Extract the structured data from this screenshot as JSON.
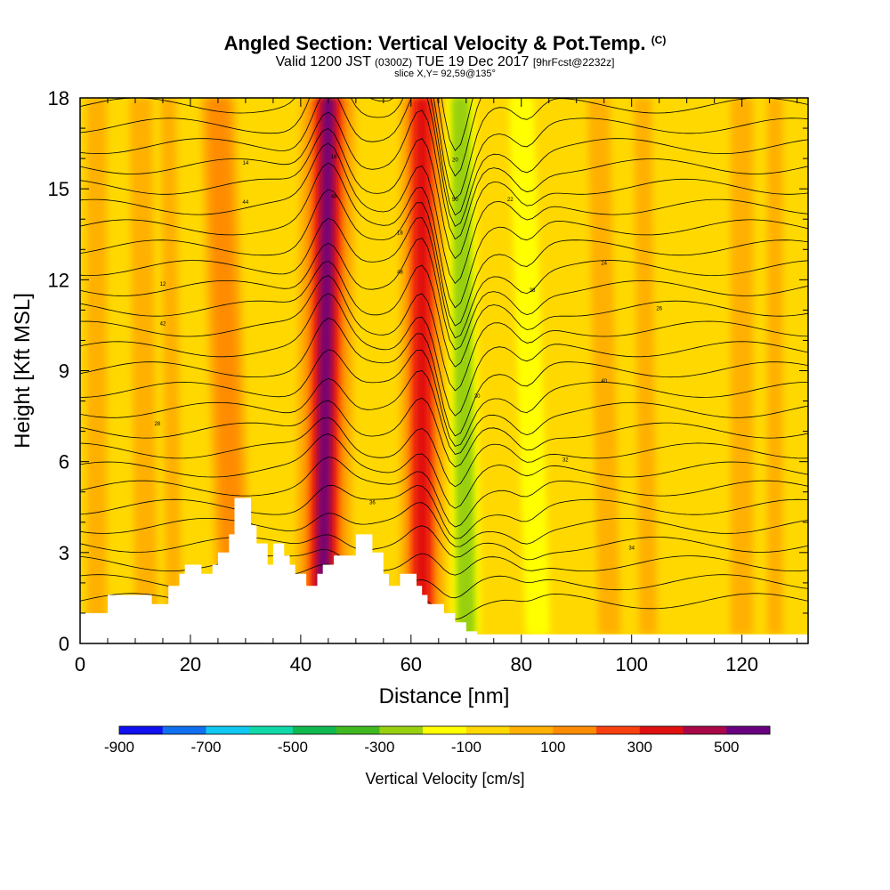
{
  "header": {
    "title_main": "Angled Section: Vertical Velocity & Pot.Temp.",
    "title_suffix": "(C)",
    "subtitle_a": "Valid 1200 JST",
    "subtitle_b": "(0300Z)",
    "subtitle_c": "TUE 19 Dec 2017",
    "subtitle_d": "[9hrFcst@2232z]",
    "slice": "slice X,Y= 92,59@135°"
  },
  "chart_data": {
    "type": "heatmap",
    "xlabel": "Distance [nm]",
    "ylabel": "Height [Kft MSL]",
    "xlim": [
      0,
      132
    ],
    "ylim": [
      0,
      18
    ],
    "x_ticks": [
      "0",
      "20",
      "40",
      "60",
      "80",
      "100",
      "120"
    ],
    "y_ticks": [
      "0",
      "3",
      "6",
      "9",
      "12",
      "15",
      "18"
    ],
    "grid": false,
    "colorbar": {
      "title": "Vertical Velocity [cm/s]",
      "bounds": [
        -900,
        -800,
        -700,
        -600,
        -500,
        -400,
        -300,
        -200,
        -100,
        0,
        100,
        200,
        300,
        400,
        500,
        600
      ],
      "tick_labels": [
        "-900",
        "-700",
        "-500",
        "-300",
        "-100",
        "100",
        "300",
        "500"
      ],
      "colors": [
        "#1010f0",
        "#1070f0",
        "#10c8f0",
        "#10d8a8",
        "#10b850",
        "#40b820",
        "#98d010",
        "#ffff00",
        "#ffd800",
        "#ffb000",
        "#ff8c00",
        "#f84010",
        "#e01010",
        "#a80848",
        "#680080"
      ]
    },
    "updraft_bands": [
      {
        "x_bottom": 44,
        "x_top": 45,
        "max_cm_s": 600
      },
      {
        "x_bottom": 62,
        "x_top": 62,
        "max_cm_s": 400
      },
      {
        "x_bottom": 28,
        "x_top": 25,
        "max_cm_s": 200
      }
    ],
    "downdraft_bands": [
      {
        "x_bottom": 70,
        "x_top": 69,
        "min_cm_s": -300
      },
      {
        "x_bottom": 83,
        "x_top": 80,
        "min_cm_s": -200
      }
    ],
    "terrain_kft": [
      [
        0,
        1.0
      ],
      [
        5,
        1.0
      ],
      [
        5,
        1.6
      ],
      [
        13,
        1.6
      ],
      [
        13,
        1.3
      ],
      [
        16,
        1.3
      ],
      [
        16,
        1.9
      ],
      [
        18,
        1.9
      ],
      [
        18,
        2.3
      ],
      [
        19,
        2.3
      ],
      [
        19,
        2.6
      ],
      [
        22,
        2.6
      ],
      [
        22,
        2.3
      ],
      [
        24,
        2.3
      ],
      [
        24,
        2.6
      ],
      [
        25,
        2.6
      ],
      [
        25,
        3.0
      ],
      [
        27,
        3.0
      ],
      [
        27,
        3.6
      ],
      [
        28,
        3.6
      ],
      [
        28,
        4.8
      ],
      [
        31,
        4.8
      ],
      [
        31,
        3.9
      ],
      [
        32,
        3.9
      ],
      [
        32,
        3.3
      ],
      [
        34,
        3.3
      ],
      [
        34,
        2.6
      ],
      [
        35,
        2.6
      ],
      [
        35,
        3.3
      ],
      [
        37,
        3.3
      ],
      [
        37,
        2.9
      ],
      [
        38,
        2.9
      ],
      [
        38,
        2.6
      ],
      [
        39,
        2.6
      ],
      [
        39,
        2.3
      ],
      [
        41,
        2.3
      ],
      [
        41,
        1.9
      ],
      [
        43,
        1.9
      ],
      [
        43,
        2.3
      ],
      [
        44,
        2.3
      ],
      [
        44,
        2.6
      ],
      [
        46,
        2.6
      ],
      [
        46,
        2.9
      ],
      [
        50,
        2.9
      ],
      [
        50,
        3.6
      ],
      [
        53,
        3.6
      ],
      [
        53,
        3.0
      ],
      [
        55,
        3.0
      ],
      [
        55,
        2.3
      ],
      [
        56,
        2.3
      ],
      [
        56,
        1.9
      ],
      [
        58,
        1.9
      ],
      [
        58,
        2.3
      ],
      [
        61,
        2.3
      ],
      [
        61,
        1.9
      ],
      [
        62,
        1.9
      ],
      [
        62,
        1.6
      ],
      [
        63,
        1.6
      ],
      [
        63,
        1.3
      ],
      [
        66,
        1.3
      ],
      [
        66,
        1.0
      ],
      [
        68,
        1.0
      ],
      [
        68,
        0.7
      ],
      [
        70,
        0.7
      ],
      [
        70,
        0.4
      ],
      [
        72,
        0.4
      ],
      [
        72,
        0.3
      ],
      [
        132,
        0.3
      ]
    ],
    "contour_labels": [
      "12",
      "14",
      "16",
      "18",
      "20",
      "22",
      "24",
      "26",
      "28",
      "30",
      "32",
      "34",
      "36",
      "38",
      "40",
      "42",
      "44",
      "46",
      "48",
      "50"
    ],
    "contour_levels_c": [
      -2,
      0,
      2,
      4,
      6,
      8,
      10,
      12,
      14,
      16,
      18,
      20,
      22,
      24,
      26,
      28,
      30,
      32,
      34,
      36,
      38,
      40,
      42,
      44,
      46,
      48,
      50,
      52
    ]
  }
}
